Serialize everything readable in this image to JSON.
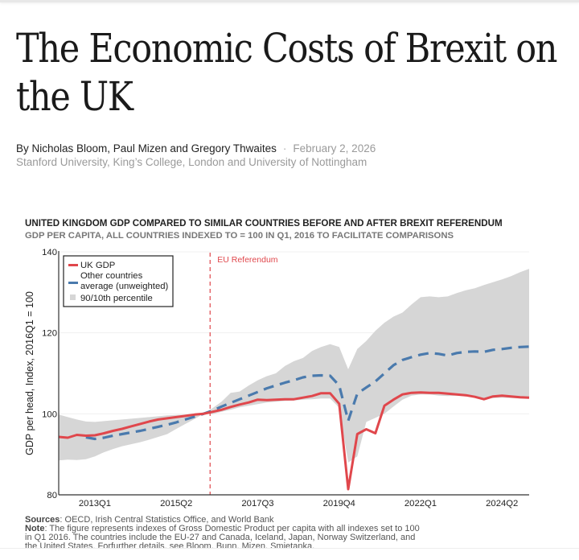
{
  "article": {
    "title": "The Economic Costs of Brexit on the UK",
    "byline": "By Nicholas Bloom, Paul Mizen and Gregory Thwaites",
    "separator": "·",
    "date": "February 2, 2026",
    "affiliation": "Stanford University, King’s College, London and University of Nottingham"
  },
  "chart_data": {
    "type": "line",
    "title": "UNITED KINGDOM GDP COMPARED TO SIMILAR COUNTRIES BEFORE AND AFTER BREXIT REFERENDUM",
    "subtitle": "GDP PER CAPITA, ALL COUNTRIES INDEXED TO = 100 IN Q1, 2016 TO FACILITATE COMPARISONS",
    "xlabel": "",
    "ylabel": "GDP per head, Index, 2016Q1 = 100",
    "ylim": [
      80,
      140
    ],
    "yticks": [
      "80",
      "100",
      "120",
      "140"
    ],
    "xticks": [
      "2013Q1",
      "2015Q2",
      "2017Q3",
      "2019Q4",
      "2022Q1",
      "2024Q2"
    ],
    "xtick_quarter_index": [
      4,
      13,
      22,
      31,
      40,
      49
    ],
    "grid": true,
    "legend_position": "top-left",
    "annotation": {
      "label": "EU Referendum",
      "quarter_index": 17
    },
    "x": [
      "2012Q1",
      "2012Q2",
      "2012Q3",
      "2012Q4",
      "2013Q1",
      "2013Q2",
      "2013Q3",
      "2013Q4",
      "2014Q1",
      "2014Q2",
      "2014Q3",
      "2014Q4",
      "2015Q1",
      "2015Q2",
      "2015Q3",
      "2015Q4",
      "2016Q1",
      "2016Q2",
      "2016Q3",
      "2016Q4",
      "2017Q1",
      "2017Q2",
      "2017Q3",
      "2017Q4",
      "2018Q1",
      "2018Q2",
      "2018Q3",
      "2018Q4",
      "2019Q1",
      "2019Q2",
      "2019Q3",
      "2019Q4",
      "2020Q1",
      "2020Q2",
      "2020Q3",
      "2020Q4",
      "2021Q1",
      "2021Q2",
      "2021Q3",
      "2021Q4",
      "2022Q1",
      "2022Q2",
      "2022Q3",
      "2022Q4",
      "2023Q1",
      "2023Q2",
      "2023Q3",
      "2023Q4",
      "2024Q1",
      "2024Q2",
      "2024Q3",
      "2024Q4",
      "2025Q1"
    ],
    "series": [
      {
        "name": "UK GDP",
        "color": "#e0474c",
        "style": "solid",
        "values": [
          94.3,
          94.1,
          94.8,
          94.6,
          94.7,
          95.2,
          95.8,
          96.3,
          96.9,
          97.5,
          98.1,
          98.6,
          98.9,
          99.2,
          99.5,
          99.8,
          100.0,
          100.5,
          101.0,
          101.7,
          102.3,
          102.8,
          103.5,
          103.4,
          103.5,
          103.6,
          103.6,
          104.0,
          104.4,
          105.1,
          105.1,
          102.5,
          81.4,
          95.0,
          96.2,
          95.2,
          102.0,
          103.5,
          104.8,
          105.2,
          105.3,
          105.2,
          105.2,
          105.0,
          104.8,
          104.6,
          104.2,
          103.6,
          104.3,
          104.5,
          104.3,
          104.1,
          104.0
        ]
      },
      {
        "name": "Other countries average (unweighted)",
        "color": "#4a7aad",
        "style": "dashed",
        "values": [
          null,
          null,
          null,
          94.2,
          93.8,
          94.1,
          94.6,
          95.0,
          95.4,
          95.8,
          96.3,
          96.8,
          97.3,
          97.9,
          98.6,
          99.3,
          100.0,
          100.8,
          101.8,
          102.7,
          103.6,
          104.5,
          105.4,
          106.3,
          107.0,
          107.7,
          108.3,
          109.0,
          109.4,
          109.5,
          109.4,
          107.0,
          98.3,
          105.0,
          106.5,
          108.0,
          110.0,
          112.0,
          113.3,
          114.0,
          114.6,
          115.0,
          114.8,
          114.4,
          115.0,
          115.3,
          115.4,
          115.3,
          115.8,
          116.0,
          116.3,
          116.5,
          116.6
        ]
      },
      {
        "name": "90/10th percentile",
        "color": "#d6d6d6",
        "style": "band",
        "upper": [
          99.8,
          99.2,
          98.6,
          98.1,
          98.0,
          98.2,
          98.4,
          98.6,
          98.8,
          99.0,
          99.2,
          99.4,
          99.6,
          99.7,
          99.8,
          99.9,
          100.0,
          101.4,
          103.0,
          105.2,
          105.5,
          107.0,
          108.3,
          109.3,
          110.0,
          111.8,
          113.0,
          113.8,
          115.5,
          116.5,
          117.2,
          116.5,
          111.0,
          116.0,
          118.0,
          120.5,
          122.5,
          124.0,
          125.0,
          127.0,
          128.8,
          129.0,
          128.8,
          129.0,
          129.8,
          130.5,
          131.0,
          131.8,
          132.5,
          133.2,
          134.0,
          135.0,
          135.8
        ],
        "lower": [
          88.5,
          88.7,
          88.6,
          88.8,
          89.5,
          90.5,
          91.3,
          92.0,
          92.5,
          93.0,
          93.6,
          94.3,
          95.0,
          96.3,
          97.5,
          98.7,
          100.0,
          99.9,
          100.5,
          101.0,
          101.6,
          102.0,
          102.4,
          102.8,
          103.0,
          103.2,
          103.3,
          103.5,
          103.6,
          103.8,
          103.8,
          101.5,
          88.0,
          89.5,
          98.0,
          99.0,
          100.0,
          101.8,
          103.5,
          104.5,
          104.8,
          104.8,
          104.5,
          104.4,
          104.5,
          104.3,
          104.0,
          103.8,
          103.9,
          104.0,
          103.9,
          103.8,
          103.8
        ]
      }
    ],
    "legend": [
      {
        "label_line1": "UK GDP",
        "label_line2": ""
      },
      {
        "label_line1": "Other countries",
        "label_line2": "average (unweighted)"
      },
      {
        "label_line1": "90/10th percentile",
        "label_line2": ""
      }
    ]
  },
  "notes": {
    "sources_label": "Sources",
    "sources_text": ": OECD, Irish Central Statistics Office, and World Bank",
    "note_label": "Note",
    "note_text": ": The figure represents indexes of Gross Domestic Product per capita with all indexes set to 100 in Q1 2016. The countries include the EU-27 and Canada, Iceland, Japan, Norway Switzerland, and the United States. Forfurther details, see Bloom, Bunn, Mizen, Smietanka,"
  }
}
